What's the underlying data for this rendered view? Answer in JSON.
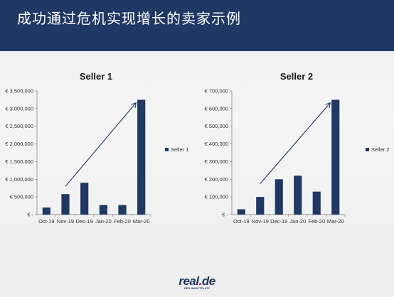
{
  "header": {
    "title": "成功通过危机实现增长的卖家示例"
  },
  "logo": {
    "name": "real",
    "dot": ".",
    "tld": "de",
    "tagline": "DER MARKTPLATZ"
  },
  "colors": {
    "header_bg": "#1f3864",
    "bar": "#1f3864",
    "arrow": "#1f3864"
  },
  "chart_data": [
    {
      "type": "bar",
      "title": "Seller 1",
      "categories": [
        "Oct-19",
        "Nov-19",
        "Dec-19",
        "Jan-20",
        "Feb-20",
        "Mar-20"
      ],
      "series": [
        {
          "name": "Seller 1",
          "values": [
            200000,
            580000,
            900000,
            270000,
            270000,
            3250000
          ]
        }
      ],
      "yticks": [
        "€ -",
        "€ 500,000",
        "€ 1,000,000",
        "€ 1,500,000",
        "€ 2,000,000",
        "€ 2,500,000",
        "€ 3,000,000",
        "€ 3,500,000"
      ],
      "ylim": [
        0,
        3500000
      ],
      "legend": "right",
      "trend_arrow": {
        "from": [
          "Nov-19",
          800000
        ],
        "to": [
          "Mar-20",
          3150000
        ]
      }
    },
    {
      "type": "bar",
      "title": "Seller 2",
      "categories": [
        "Oct-19",
        "Nov-19",
        "Dec-19",
        "Jan-20",
        "Feb-20",
        "Mar-20"
      ],
      "series": [
        {
          "name": "Seller 2",
          "values": [
            30000,
            100000,
            200000,
            220000,
            130000,
            650000
          ]
        }
      ],
      "yticks": [
        "€ -",
        "€ 100,000",
        "€ 200,000",
        "€ 300,000",
        "€ 400,000",
        "€ 500,000",
        "€ 600,000",
        "€ 700,000"
      ],
      "ylim": [
        0,
        700000
      ],
      "legend": "right",
      "trend_arrow": {
        "from": [
          "Nov-19",
          175000
        ],
        "to": [
          "Mar-20",
          630000
        ]
      }
    }
  ]
}
